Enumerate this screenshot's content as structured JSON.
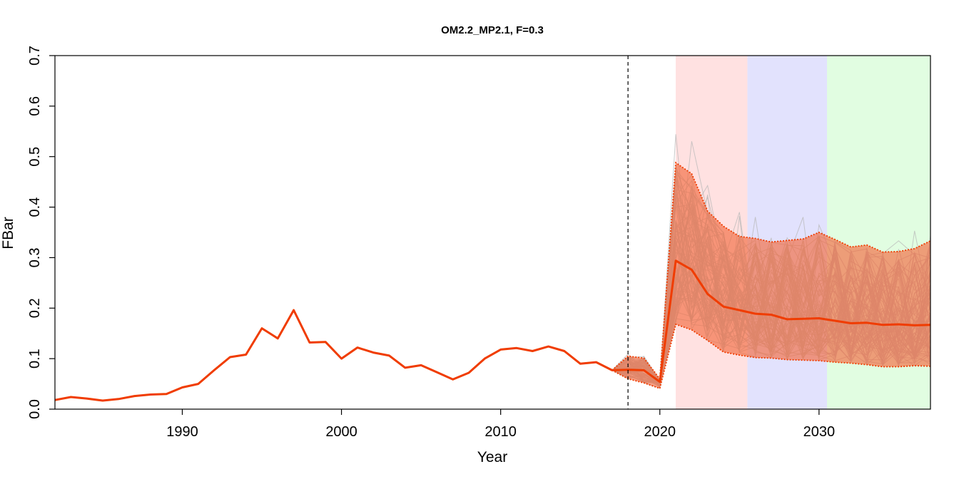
{
  "chart_data": {
    "type": "line",
    "title": "OM2.2_MP2.1, F=0.3",
    "xlabel": "Year",
    "ylabel": "FBar",
    "xlim": [
      1982,
      2037
    ],
    "ylim": [
      0,
      0.7
    ],
    "xticks": [
      1990,
      2000,
      2010,
      2020,
      2030
    ],
    "yticks": [
      0.0,
      0.1,
      0.2,
      0.3,
      0.4,
      0.5,
      0.6,
      0.7
    ],
    "ytick_labels": [
      "0.0",
      "0.1",
      "0.2",
      "0.3",
      "0.4",
      "0.5",
      "0.6",
      "0.7"
    ],
    "grid": false,
    "vline_year": 2018,
    "shaded_periods": [
      {
        "from": 2021,
        "to": 2025.5,
        "color": "#ffe1e1"
      },
      {
        "from": 2025.5,
        "to": 2030.5,
        "color": "#e2e2fd"
      },
      {
        "from": 2030.5,
        "to": 2037,
        "color": "#e1fde1"
      }
    ],
    "colors": {
      "median": "#f03c00",
      "band": "#f26a3f",
      "iterations": "#b8b8b8"
    },
    "series": [
      {
        "role": "median",
        "x": [
          1982,
          1983,
          1984,
          1985,
          1986,
          1987,
          1988,
          1989,
          1990,
          1991,
          1992,
          1993,
          1994,
          1995,
          1996,
          1997,
          1998,
          1999,
          2000,
          2001,
          2002,
          2003,
          2004,
          2005,
          2006,
          2007,
          2008,
          2009,
          2010,
          2011,
          2012,
          2013,
          2014,
          2015,
          2016,
          2017,
          2018,
          2019,
          2020,
          2021,
          2022,
          2023,
          2024,
          2025,
          2026,
          2027,
          2028,
          2029,
          2030,
          2031,
          2032,
          2033,
          2034,
          2035,
          2036,
          2037
        ],
        "values": [
          0.018,
          0.024,
          0.021,
          0.017,
          0.02,
          0.026,
          0.029,
          0.03,
          0.043,
          0.05,
          0.077,
          0.103,
          0.108,
          0.16,
          0.14,
          0.196,
          0.132,
          0.133,
          0.1,
          0.122,
          0.112,
          0.106,
          0.082,
          0.087,
          0.073,
          0.059,
          0.072,
          0.1,
          0.118,
          0.121,
          0.115,
          0.124,
          0.115,
          0.09,
          0.093,
          0.077,
          0.078,
          0.077,
          0.054,
          0.294,
          0.276,
          0.228,
          0.203,
          0.196,
          0.189,
          0.187,
          0.178,
          0.179,
          0.18,
          0.175,
          0.17,
          0.171,
          0.167,
          0.168,
          0.166,
          0.167
        ]
      },
      {
        "role": "upper",
        "x": [
          2017,
          2018,
          2019,
          2020,
          2021,
          2022,
          2023,
          2024,
          2025,
          2026,
          2027,
          2028,
          2029,
          2030,
          2031,
          2032,
          2033,
          2034,
          2035,
          2036,
          2037
        ],
        "values": [
          0.077,
          0.105,
          0.101,
          0.06,
          0.488,
          0.466,
          0.392,
          0.362,
          0.342,
          0.338,
          0.331,
          0.334,
          0.337,
          0.35,
          0.336,
          0.321,
          0.325,
          0.311,
          0.312,
          0.318,
          0.333
        ]
      },
      {
        "role": "lower",
        "x": [
          2017,
          2018,
          2019,
          2020,
          2021,
          2022,
          2023,
          2024,
          2025,
          2026,
          2027,
          2028,
          2029,
          2030,
          2031,
          2032,
          2033,
          2034,
          2035,
          2036,
          2037
        ],
        "values": [
          0.077,
          0.06,
          0.052,
          0.041,
          0.168,
          0.157,
          0.136,
          0.113,
          0.107,
          0.102,
          0.101,
          0.098,
          0.097,
          0.096,
          0.093,
          0.091,
          0.088,
          0.084,
          0.084,
          0.086,
          0.085
        ]
      }
    ]
  }
}
